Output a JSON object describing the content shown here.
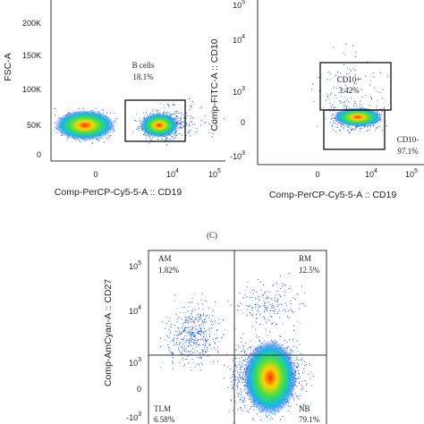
{
  "panel_a": {
    "y_label": "FSC-A",
    "y_ticks": [
      {
        "base": "200K"
      },
      {
        "base": "150K"
      },
      {
        "base": "100K"
      },
      {
        "base": "50K"
      },
      {
        "base": "0"
      }
    ],
    "x_ticks": [
      {
        "base": "0"
      },
      {
        "base": "10",
        "exp": "4"
      },
      {
        "base": "10",
        "exp": "5"
      }
    ],
    "x_label": "Comp-PerCP-Cy5-5-A :: CD19",
    "gates": [
      {
        "name": "B cells",
        "percent": "18.1%"
      }
    ]
  },
  "panel_b": {
    "y_label": "Comp-FITC-A :: CD10",
    "y_ticks": [
      {
        "base": "10",
        "exp": "5"
      },
      {
        "base": "10",
        "exp": "4"
      },
      {
        "base": "10",
        "exp": "3"
      },
      {
        "base": "0"
      },
      {
        "base": "-10",
        "exp": "3"
      }
    ],
    "x_ticks": [
      {
        "base": "0"
      },
      {
        "base": "10",
        "exp": "4"
      },
      {
        "base": "10",
        "exp": "5"
      }
    ],
    "x_label": "Comp-PerCP-Cy5-5-A :: CD19",
    "gates": [
      {
        "name": "CD10+",
        "percent": "3.42%"
      },
      {
        "name": "CD10-",
        "percent": "97.1%"
      }
    ]
  },
  "panel_c": {
    "caption": "(C)",
    "y_label": "Comp-AmCyan-A :: CD27",
    "y_ticks": [
      {
        "base": "10",
        "exp": "5"
      },
      {
        "base": "10",
        "exp": "4"
      },
      {
        "base": "10",
        "exp": "3"
      },
      {
        "base": "0"
      },
      {
        "base": "-10",
        "exp": "3"
      }
    ],
    "quadrants": [
      {
        "name": "AM",
        "percent": "1.82%"
      },
      {
        "name": "RM",
        "percent": "12.5%"
      },
      {
        "name": "TLM",
        "percent": "6.58%"
      },
      {
        "name": "NB",
        "percent": "79.1%"
      }
    ]
  }
}
